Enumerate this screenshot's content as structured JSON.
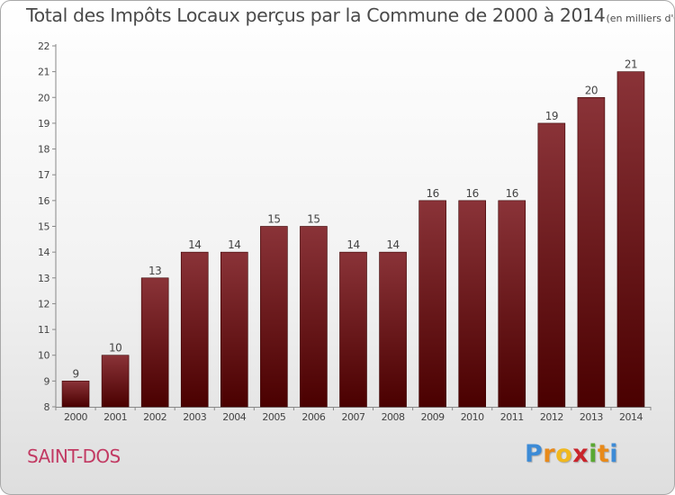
{
  "chart_data": {
    "type": "bar",
    "title": "Total des Impôts Locaux perçus par la Commune de 2000 à 2014",
    "unit_label": "(en milliers d'€)",
    "categories": [
      "2000",
      "2001",
      "2002",
      "2003",
      "2004",
      "2005",
      "2006",
      "2007",
      "2008",
      "2009",
      "2010",
      "2011",
      "2012",
      "2013",
      "2014"
    ],
    "values": [
      9,
      10,
      13,
      14,
      14,
      15,
      15,
      14,
      14,
      16,
      16,
      16,
      19,
      20,
      21
    ],
    "ylim": [
      8,
      22
    ],
    "yticks": [
      8,
      9,
      10,
      11,
      12,
      13,
      14,
      15,
      16,
      17,
      18,
      19,
      20,
      21,
      22
    ],
    "xlabel": "",
    "ylabel": "",
    "grid": false,
    "bar_color_top": "#8a3338",
    "bar_color_bottom": "#4a0000"
  },
  "commune": "SAINT-DOS",
  "logo": {
    "letters": [
      "P",
      "r",
      "o",
      "x",
      "i",
      "t",
      "i"
    ],
    "colors": [
      "#3d8bd6",
      "#e88a1a",
      "#f0b81e",
      "#c9242b",
      "#5aa832",
      "#e88a1a",
      "#3d8bd6"
    ]
  }
}
